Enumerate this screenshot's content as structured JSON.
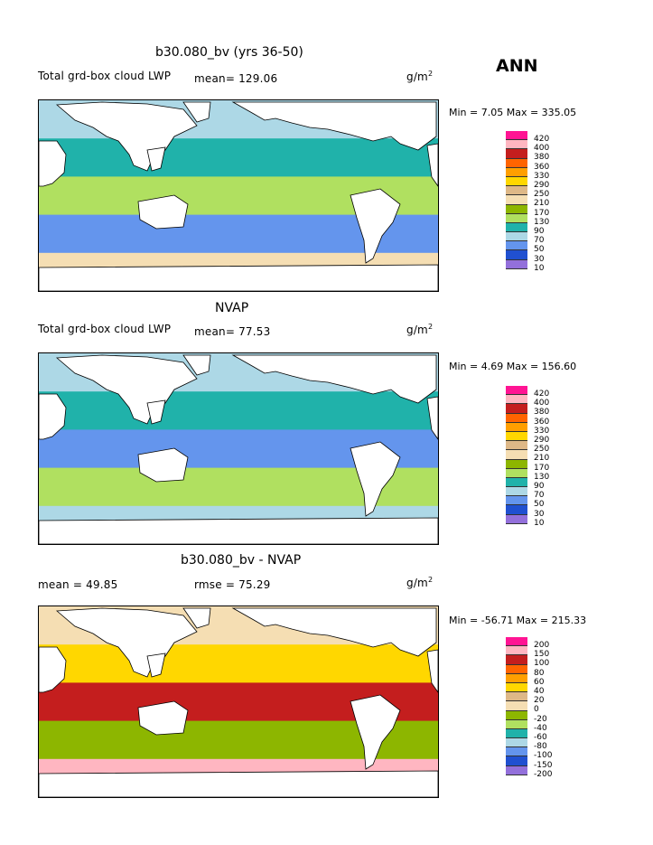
{
  "season": "ANN",
  "panels": [
    {
      "title": "b30.080_bv (yrs 36-50)",
      "left_label": "Total grd-box cloud LWP",
      "stat": "mean=  129.06",
      "unit_base": "g/m",
      "unit_exp": "2",
      "minmax": "Min =    7.05 Max = 335.05",
      "levels": [
        "420",
        "400",
        "380",
        "360",
        "330",
        "290",
        "250",
        "210",
        "170",
        "130",
        "90",
        "70",
        "50",
        "30",
        "10"
      ],
      "colors": [
        "#ff1493",
        "#ffb6c1",
        "#c41e1e",
        "#ff6400",
        "#ff9f00",
        "#ffd700",
        "#deb887",
        "#f5deb3",
        "#8db600",
        "#b0e060",
        "#20b2aa",
        "#add8e6",
        "#6495ed",
        "#2050d0",
        "#9370db"
      ],
      "ocean": [
        "#add8e6",
        "#20b2aa",
        "#b0e060",
        "#6495ed",
        "#f5deb3"
      ]
    },
    {
      "title": "NVAP",
      "left_label": "Total grd-box cloud LWP",
      "stat": "mean=   77.53",
      "unit_base": "g/m",
      "unit_exp": "2",
      "minmax": "Min =    4.69 Max = 156.60",
      "levels": [
        "420",
        "400",
        "380",
        "360",
        "330",
        "290",
        "250",
        "210",
        "170",
        "130",
        "90",
        "70",
        "50",
        "30",
        "10"
      ],
      "colors": [
        "#ff1493",
        "#ffb6c1",
        "#c41e1e",
        "#ff6400",
        "#ff9f00",
        "#ffd700",
        "#deb887",
        "#f5deb3",
        "#8db600",
        "#b0e060",
        "#20b2aa",
        "#add8e6",
        "#6495ed",
        "#2050d0",
        "#9370db"
      ],
      "ocean": [
        "#add8e6",
        "#20b2aa",
        "#6495ed",
        "#b0e060",
        "#add8e6"
      ]
    },
    {
      "title": "b30.080_bv - NVAP",
      "left_label": "mean =   49.85",
      "stat": "rmse =   75.29",
      "unit_base": "g/m",
      "unit_exp": "2",
      "minmax": "Min = -56.71 Max = 215.33",
      "levels": [
        "200",
        "150",
        "100",
        "80",
        "60",
        "40",
        "20",
        "0",
        "-20",
        "-40",
        "-60",
        "-80",
        "-100",
        "-150",
        "-200"
      ],
      "colors": [
        "#ff1493",
        "#ffb6c1",
        "#c41e1e",
        "#ff6400",
        "#ff9f00",
        "#ffd700",
        "#deb887",
        "#f5deb3",
        "#8db600",
        "#b0e060",
        "#20b2aa",
        "#add8e6",
        "#6495ed",
        "#2050d0",
        "#9370db"
      ],
      "ocean": [
        "#f5deb3",
        "#ffd700",
        "#c41e1e",
        "#8db600",
        "#ffb6c1"
      ]
    }
  ]
}
